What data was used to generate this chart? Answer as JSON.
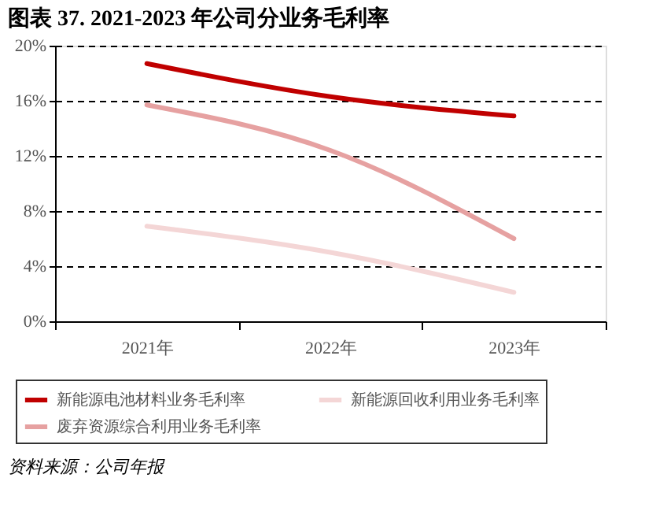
{
  "chart_data": {
    "type": "line",
    "title": "图表 37. 2021-2023 年公司分业务毛利率",
    "categories": [
      "2021年",
      "2022年",
      "2023年"
    ],
    "series": [
      {
        "name": "新能源电池材料业务毛利率",
        "color": "#c00000",
        "values": [
          18.7,
          16.3,
          14.9
        ]
      },
      {
        "name": "废弃资源综合利用业务毛利率",
        "color": "#e6a1a1",
        "values": [
          15.7,
          12.4,
          6.0
        ]
      },
      {
        "name": "新能源回收利用业务毛利率",
        "color": "#f4d6d6",
        "values": [
          6.9,
          5.0,
          2.1
        ]
      }
    ],
    "ylim": [
      0,
      20
    ],
    "yticks": [
      {
        "value": 0,
        "label": "0%"
      },
      {
        "value": 4,
        "label": "4%"
      },
      {
        "value": 8,
        "label": "8%"
      },
      {
        "value": 12,
        "label": "12%"
      },
      {
        "value": 16,
        "label": "16%"
      },
      {
        "value": 20,
        "label": "20%"
      }
    ],
    "grid": "y",
    "legend": "bottom",
    "marker": "none",
    "line_style": "solid",
    "annotations": [
      "资料来源：公司年报"
    ]
  }
}
